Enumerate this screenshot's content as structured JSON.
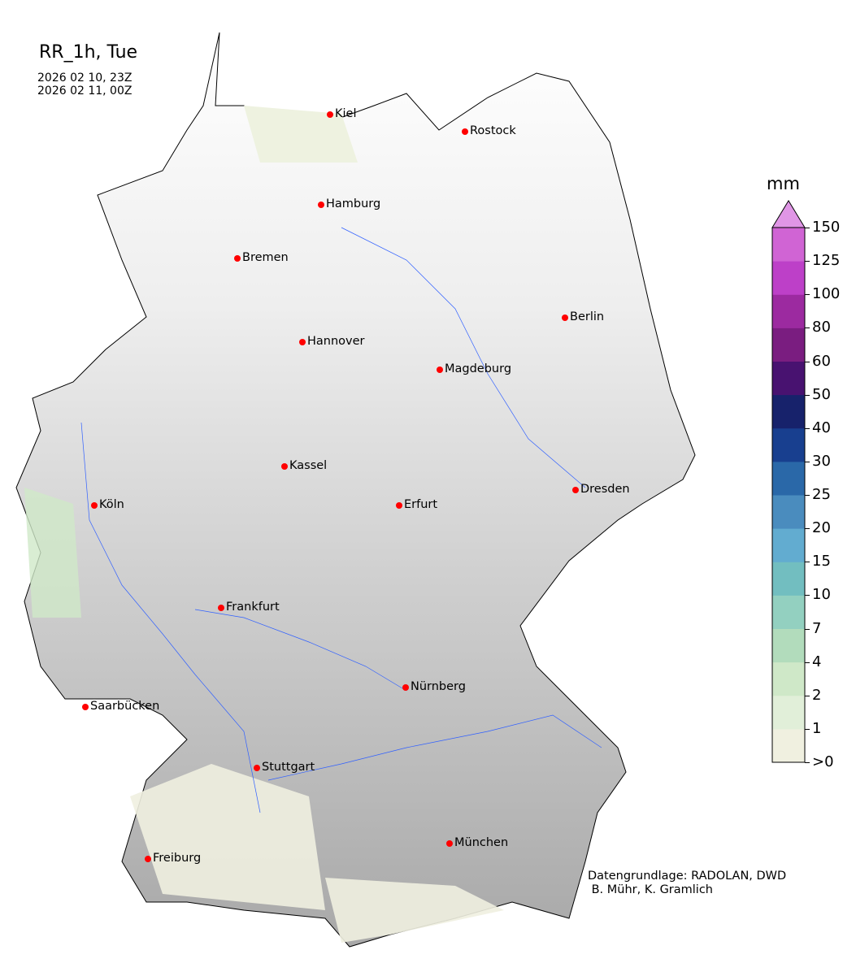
{
  "title": "RR_1h, Tue",
  "time_start": "2026 02 10, 23Z",
  "time_end": "2026 02 11, 00Z",
  "colorbar": {
    "unit": "mm",
    "ticks": [
      ">0",
      "1",
      "2",
      "4",
      "7",
      "10",
      "15",
      "20",
      "25",
      "30",
      "40",
      "50",
      "60",
      "80",
      "100",
      "125",
      "150"
    ],
    "colors": [
      "#f0f0e0",
      "#e1efd9",
      "#cfe8c8",
      "#b2dcbc",
      "#93d0c0",
      "#72bec0",
      "#62acd0",
      "#4a8cbe",
      "#2a68a8",
      "#183f8f",
      "#17226b",
      "#481270",
      "#7a1d80",
      "#9c2aa0",
      "#bd40c8",
      "#d064d4"
    ],
    "extend_color": "#e096e6"
  },
  "cities": [
    "Kiel",
    "Rostock",
    "Hamburg",
    "Bremen",
    "Berlin",
    "Hannover",
    "Magdeburg",
    "Kassel",
    "Köln",
    "Erfurt",
    "Dresden",
    "Frankfurt",
    "Nürnberg",
    "Saarbücken",
    "Stuttgart",
    "München",
    "Freiburg"
  ],
  "city_color": "#ff0000",
  "river_color": "#3060ff",
  "credit": "Datengrundlage: RADOLAN, DWD\n B. Mühr, K. Gramlich"
}
